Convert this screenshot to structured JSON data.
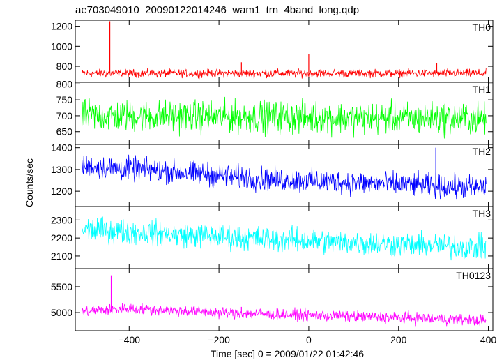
{
  "chart_data": {
    "type": "line",
    "title": "ae703049010_20090122014246_wam1_trn_4band_long.qdp",
    "xlabel": "Time [sec] 0 = 2009/01/22 01:42:46",
    "ylabel": "Counts/sec",
    "xlim": [
      -520,
      410
    ],
    "xticks": [
      -400,
      -200,
      0,
      200,
      400
    ],
    "xtick_labels": [
      "−400",
      "−200",
      "0",
      "200",
      "400"
    ],
    "grid": false,
    "panels": [
      {
        "name": "TH0",
        "color": "#ff0000",
        "ylim": [
          640,
          1260
        ],
        "yticks": [
          800,
          1000,
          1200
        ],
        "x_range": [
          -505,
          395
        ],
        "trend": [
          [
            -505,
            730
          ],
          [
            400,
            730
          ]
        ],
        "noise_amplitude": 45,
        "spikes": [
          [
            -443,
            1250
          ],
          [
            -150,
            840
          ],
          [
            0,
            920
          ],
          [
            285,
            830
          ]
        ]
      },
      {
        "name": "TH1",
        "color": "#00ff00",
        "ylim": [
          610,
          805
        ],
        "yticks": [
          650,
          700,
          750,
          800
        ],
        "x_range": [
          -505,
          395
        ],
        "trend": [
          [
            -505,
            700
          ],
          [
            400,
            690
          ]
        ],
        "noise_amplitude": 55,
        "spikes": []
      },
      {
        "name": "TH2",
        "color": "#0000ff",
        "ylim": [
          1130,
          1415
        ],
        "yticks": [
          1200,
          1300,
          1400
        ],
        "x_range": [
          -505,
          395
        ],
        "trend": [
          [
            -505,
            1315
          ],
          [
            -300,
            1290
          ],
          [
            -100,
            1255
          ],
          [
            100,
            1240
          ],
          [
            400,
            1215
          ]
        ],
        "noise_amplitude": 60,
        "spikes": [
          [
            283,
            1400
          ]
        ]
      },
      {
        "name": "TH3",
        "color": "#00ffff",
        "ylim": [
          2030,
          2375
        ],
        "yticks": [
          2100,
          2200,
          2300
        ],
        "x_range": [
          -505,
          395
        ],
        "trend": [
          [
            -505,
            2250
          ],
          [
            -300,
            2220
          ],
          [
            -100,
            2195
          ],
          [
            100,
            2175
          ],
          [
            400,
            2145
          ]
        ],
        "noise_amplitude": 75,
        "spikes": []
      },
      {
        "name": "TH0123",
        "color": "#ff00ff",
        "ylim": [
          4650,
          5850
        ],
        "yticks": [
          5000,
          5500
        ],
        "x_range": [
          -505,
          395
        ],
        "trend": [
          [
            -505,
            5020
          ],
          [
            -400,
            5080
          ],
          [
            -200,
            5000
          ],
          [
            0,
            4950
          ],
          [
            200,
            4900
          ],
          [
            400,
            4850
          ]
        ],
        "noise_amplitude": 120,
        "spikes": [
          [
            -440,
            5720
          ],
          [
            -150,
            5110
          ]
        ]
      }
    ]
  }
}
